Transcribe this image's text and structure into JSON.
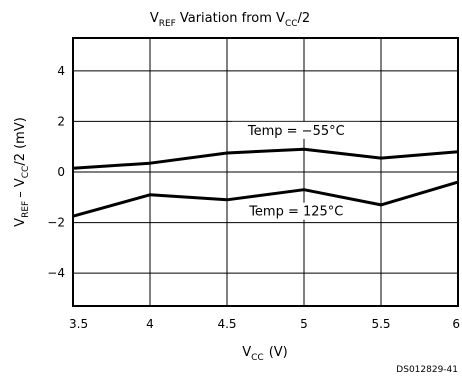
{
  "chart_data": {
    "type": "line",
    "title": {
      "prefix": "V",
      "prefix_sub": "REF",
      "text": "Variation from V",
      "text_sub": "CC",
      "suffix": "/2"
    },
    "xlabel": {
      "main": "V",
      "sub": "CC",
      "suffix": "(V)"
    },
    "ylabel": {
      "a": "V",
      "a_sub": "REF",
      "b": "– V",
      "b_sub": "CC",
      "c": "/2 (mV)"
    },
    "xlim": [
      3.5,
      6
    ],
    "ylim": [
      -5.3,
      5.3
    ],
    "grid": true,
    "x_ticks": [
      3.5,
      4,
      4.5,
      5,
      5.5,
      6
    ],
    "x_tick_labels": [
      "3.5",
      "4",
      "4.5",
      "5",
      "5.5",
      "6"
    ],
    "y_ticks": [
      4,
      2,
      0,
      -2,
      -4
    ],
    "y_tick_labels": [
      "4",
      "2",
      "0",
      "−2",
      "−4"
    ],
    "series": [
      {
        "name": "Temp = −55°C",
        "x": [
          3.5,
          4,
          4.5,
          5,
          5.5,
          6
        ],
        "values": [
          0.15,
          0.35,
          0.75,
          0.9,
          0.55,
          0.8
        ]
      },
      {
        "name": "Temp = 125°C",
        "x": [
          3.5,
          4,
          4.5,
          5,
          5.5,
          6
        ],
        "values": [
          -1.75,
          -0.9,
          -1.1,
          -0.7,
          -1.3,
          -0.4
        ]
      }
    ]
  },
  "footer": {
    "doc_id": "DS012829-41"
  }
}
